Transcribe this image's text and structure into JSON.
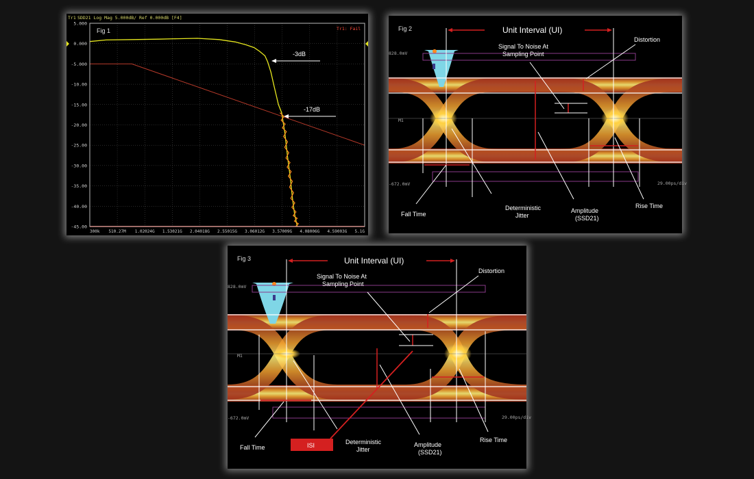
{
  "fig1": {
    "label": "Fig 1",
    "header": "SDD21 Log Mag 5.000dB/ Ref 0.000dB [F4]",
    "trace_tag": "Tr1",
    "status": "Tr1: Fail",
    "annot_3db": "-3dB",
    "annot_17db": "-17dB",
    "colors": {
      "trace": "#e6e61e",
      "limit": "#b83a2a",
      "grid": "#555555",
      "axis_text": "#cfcfcf"
    },
    "chart_data": {
      "type": "line",
      "title": "",
      "xlabel": "",
      "ylabel": "",
      "ylim": [
        -45,
        5
      ],
      "y_ticks": [
        "5.000",
        "0.000",
        "-5.000",
        "-10.00",
        "-15.00",
        "-20.00",
        "-25.00",
        "-30.00",
        "-35.00",
        "-40.00",
        "-45.00"
      ],
      "x_ticks": [
        "300k",
        "510.27M",
        "1.02024G",
        "1.53021G",
        "2.04018G",
        "2.55015G",
        "3.06012G",
        "3.57009G",
        "4.08006G",
        "4.59003G",
        "5.1G"
      ],
      "x_unit": "GHz",
      "xlim": [
        0.0003,
        5.1
      ],
      "series": [
        {
          "role": "measured",
          "x": [
            0.0003,
            0.3,
            0.8,
            1.3,
            1.6,
            2.0,
            2.4,
            2.7,
            2.9,
            3.05,
            3.15,
            3.25,
            3.3,
            3.36,
            3.42,
            3.5,
            3.56,
            3.62,
            3.67,
            3.72,
            3.76,
            3.8,
            3.85
          ],
          "y": [
            0.5,
            0.9,
            1.0,
            1.1,
            1.2,
            1.3,
            1.0,
            0.4,
            -0.3,
            -1.0,
            -1.9,
            -3.0,
            -4.5,
            -7.0,
            -10.5,
            -15.0,
            -17.0,
            -22.0,
            -28.0,
            -33.0,
            -38.0,
            -42.0,
            -45.0
          ]
        },
        {
          "role": "limit",
          "x": [
            0.0003,
            0.78,
            5.1
          ],
          "y": [
            -5.0,
            -5.0,
            -25.0
          ]
        }
      ]
    }
  },
  "eye": {
    "unit_interval": "Unit Interval (UI)",
    "distortion": "Distortion",
    "snr_line1": "Signal To Noise At",
    "snr_line2": "Sampling Point",
    "fall_time": "Fall Time",
    "det_jitter_1": "Deterministic",
    "det_jitter_2": "Jitter",
    "amplitude": "Amplitude",
    "ssd21": "(SSD21)",
    "rise_time": "Rise Time",
    "top_level": "828.0mV",
    "bottom_level": "-672.0mV",
    "timebase": "29.00ps/div",
    "marker": "M1",
    "colors": {
      "arrow_red": "#d42020",
      "histogram": "#7fd6e6",
      "eye_hot": "#ffe066",
      "eye_cool": "#c0392b"
    }
  },
  "fig2": {
    "label": "Fig 2"
  },
  "fig3": {
    "label": "Fig 3",
    "isi_label": "ISI"
  }
}
